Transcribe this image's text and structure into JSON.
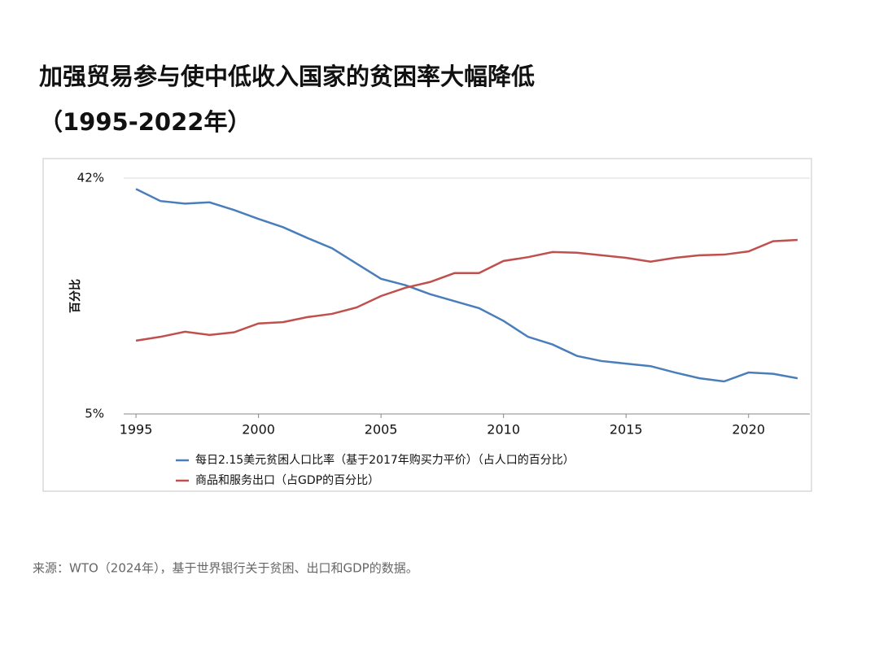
{
  "chart_data": {
    "type": "line",
    "title": "加强贸易参与使中低收入国家的贫困率大幅降低",
    "subtitle": "（1995-2022年）",
    "y_label": "百分比",
    "source": "来源：WTO（2024年），基于世界银行关于贫困、出口和GDP的数据。",
    "x": [
      1995,
      1996,
      1997,
      1998,
      1999,
      2000,
      2001,
      2002,
      2003,
      2004,
      2005,
      2006,
      2007,
      2008,
      2009,
      2010,
      2011,
      2012,
      2013,
      2014,
      2015,
      2016,
      2017,
      2018,
      2019,
      2020,
      2021,
      2022
    ],
    "series": [
      {
        "name": "每日2.15美元贫困人口比率（基于2017年购买力平价）（占人口的百分比）",
        "color": "#4a7ebb",
        "values": [
          40.3,
          38.4,
          38.0,
          38.2,
          37.0,
          35.6,
          34.3,
          32.6,
          31.0,
          28.6,
          26.2,
          25.2,
          23.8,
          22.7,
          21.6,
          19.6,
          17.1,
          15.9,
          14.1,
          13.3,
          12.9,
          12.5,
          11.5,
          10.6,
          10.1,
          11.5,
          11.3,
          10.6
        ]
      },
      {
        "name": "商品和服务出口（占GDP的百分比）",
        "color": "#c0504d",
        "values": [
          16.5,
          17.1,
          17.9,
          17.4,
          17.8,
          19.2,
          19.4,
          20.2,
          20.7,
          21.7,
          23.5,
          24.8,
          25.7,
          27.1,
          27.1,
          29.0,
          29.6,
          30.4,
          30.3,
          29.9,
          29.5,
          28.9,
          29.5,
          29.9,
          30.0,
          30.5,
          32.1,
          32.3
        ]
      }
    ],
    "xlim": [
      1994.5,
      2022.5
    ],
    "xticks": [
      1995,
      2000,
      2005,
      2010,
      2015,
      2020
    ],
    "ylim": [
      5,
      42
    ],
    "yticks": [
      {
        "value": 5,
        "label": "5%"
      },
      {
        "value": 42,
        "label": "42%"
      }
    ]
  }
}
